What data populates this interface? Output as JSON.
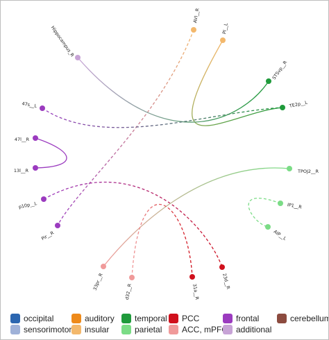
{
  "colors": {
    "occipital": "#2c66b0",
    "sensorimotor": "#9fb1d8",
    "auditory": "#ee8a1a",
    "insular": "#f3b86c",
    "temporal": "#1f9a3b",
    "parietal": "#7bdc86",
    "pcc": "#d0101c",
    "acc_mpfc": "#f09a9a",
    "frontal": "#9b3bbf",
    "additional": "#c7a3d6",
    "cerebellum": "#8c4b3f"
  },
  "nodes": [
    {
      "id": "AVI_R",
      "label": "AVI__R",
      "color_key": "insular"
    },
    {
      "id": "PI_L",
      "label": "PI__L",
      "color_key": "insular"
    },
    {
      "id": "STSvp_R",
      "label": "STSvp__R",
      "color_key": "temporal"
    },
    {
      "id": "TE2p_L",
      "label": "TE2p__L",
      "color_key": "temporal"
    },
    {
      "id": "TPOJ2_R",
      "label": "TPOJ2__R",
      "color_key": "parietal"
    },
    {
      "id": "IP1_R",
      "label": "IP1__R",
      "color_key": "parietal"
    },
    {
      "id": "AIP_L",
      "label": "AIP__L",
      "color_key": "parietal"
    },
    {
      "id": "23d_R",
      "label": "23d__R",
      "color_key": "pcc"
    },
    {
      "id": "31a_R",
      "label": "31a__R",
      "color_key": "pcc"
    },
    {
      "id": "d32_R",
      "label": "d32__R",
      "color_key": "acc_mpfc"
    },
    {
      "id": "33pr_R",
      "label": "33pr__R",
      "color_key": "acc_mpfc"
    },
    {
      "id": "Pir_R",
      "label": "Pir__R",
      "color_key": "frontal"
    },
    {
      "id": "p10p_L",
      "label": "p10p__L",
      "color_key": "frontal"
    },
    {
      "id": "13l_R",
      "label": "13l__R",
      "color_key": "frontal"
    },
    {
      "id": "47l_R",
      "label": "47l__R",
      "color_key": "frontal"
    },
    {
      "id": "47s_L",
      "label": "47s__L",
      "color_key": "frontal"
    },
    {
      "id": "Hippocampus_R",
      "label": "Hippocampus_R",
      "color_key": "additional"
    }
  ],
  "edges": [
    {
      "source": "AVI_R",
      "target": "Pir_R",
      "style": "dashed"
    },
    {
      "source": "PI_L",
      "target": "TE2p_L",
      "style": "solid"
    },
    {
      "source": "Hippocampus_R",
      "target": "STSvp_R",
      "style": "solid"
    },
    {
      "source": "47s_L",
      "target": "TE2p_L",
      "style": "dashed"
    },
    {
      "source": "47l_R",
      "target": "13l_R",
      "style": "solid"
    },
    {
      "source": "p10p_L",
      "target": "23d_R",
      "style": "dashed"
    },
    {
      "source": "TPOJ2_R",
      "target": "33pr_R",
      "style": "solid"
    },
    {
      "source": "IP1_R",
      "target": "AIP_L",
      "style": "dashed"
    },
    {
      "source": "d32_R",
      "target": "31a_R",
      "style": "dashed"
    }
  ],
  "legend": [
    [
      {
        "key": "occipital",
        "label": "occipital"
      },
      {
        "key": "sensorimotor",
        "label": "sensorimotor"
      }
    ],
    [
      {
        "key": "auditory",
        "label": "auditory"
      },
      {
        "key": "insular",
        "label": "insular"
      }
    ],
    [
      {
        "key": "temporal",
        "label": "temporal"
      },
      {
        "key": "parietal",
        "label": "parietal"
      }
    ],
    [
      {
        "key": "pcc",
        "label": "PCC"
      },
      {
        "key": "acc_mpfc",
        "label": "ACC, mPFC"
      }
    ],
    [
      {
        "key": "frontal",
        "label": "frontal"
      },
      {
        "key": "additional",
        "label": "additional"
      }
    ],
    [
      {
        "key": "cerebellum",
        "label": "cerebellum"
      }
    ]
  ]
}
